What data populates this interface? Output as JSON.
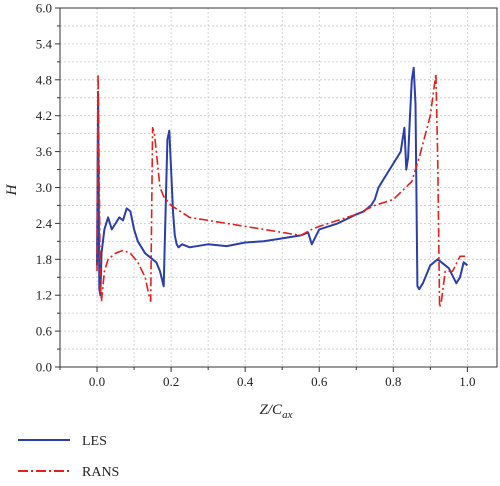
{
  "chart_data": {
    "type": "line",
    "xlabel_main": "Z",
    "xlabel_sep": "/C",
    "xlabel_sub": "ax",
    "ylabel": "H",
    "xlim": [
      -0.1,
      1.08
    ],
    "ylim": [
      0,
      6.0
    ],
    "xticks": [
      "0.0",
      "0.2",
      "0.4",
      "0.6",
      "0.8",
      "1.0"
    ],
    "yticks": [
      "0.0",
      "0.6",
      "1.2",
      "1.8",
      "2.4",
      "3.0",
      "3.6",
      "4.2",
      "4.8",
      "5.4",
      "6.0"
    ],
    "grid": true,
    "legend_position": "bottom-left",
    "series": [
      {
        "name": "LES",
        "color": "#2b3fa8",
        "dash": "solid",
        "x": [
          0.0,
          0.003,
          0.006,
          0.009,
          0.012,
          0.02,
          0.03,
          0.04,
          0.05,
          0.06,
          0.07,
          0.08,
          0.09,
          0.1,
          0.11,
          0.12,
          0.13,
          0.14,
          0.15,
          0.16,
          0.17,
          0.18,
          0.19,
          0.195,
          0.2,
          0.205,
          0.21,
          0.215,
          0.22,
          0.23,
          0.25,
          0.3,
          0.35,
          0.4,
          0.45,
          0.5,
          0.55,
          0.57,
          0.58,
          0.6,
          0.65,
          0.7,
          0.72,
          0.74,
          0.75,
          0.76,
          0.78,
          0.8,
          0.82,
          0.83,
          0.835,
          0.84,
          0.845,
          0.85,
          0.855,
          0.86,
          0.865,
          0.87,
          0.88,
          0.9,
          0.92,
          0.94,
          0.95,
          0.97,
          0.98,
          0.99,
          1.0
        ],
        "y": [
          1.7,
          4.6,
          1.3,
          1.2,
          1.9,
          2.3,
          2.5,
          2.3,
          2.4,
          2.5,
          2.45,
          2.65,
          2.6,
          2.3,
          2.1,
          2.0,
          1.9,
          1.85,
          1.8,
          1.75,
          1.6,
          1.35,
          3.8,
          3.95,
          3.3,
          2.6,
          2.2,
          2.05,
          2.0,
          2.05,
          2.0,
          2.05,
          2.02,
          2.08,
          2.1,
          2.15,
          2.2,
          2.25,
          2.05,
          2.3,
          2.4,
          2.55,
          2.6,
          2.7,
          2.8,
          3.0,
          3.2,
          3.4,
          3.6,
          4.0,
          3.3,
          3.5,
          4.2,
          4.8,
          5.0,
          4.4,
          1.35,
          1.3,
          1.4,
          1.7,
          1.8,
          1.7,
          1.65,
          1.4,
          1.5,
          1.75,
          1.7
        ]
      },
      {
        "name": "RANS",
        "color": "#e3201b",
        "dash": "dashdot",
        "x": [
          0.0,
          0.003,
          0.006,
          0.009,
          0.012,
          0.02,
          0.03,
          0.05,
          0.07,
          0.09,
          0.11,
          0.13,
          0.14,
          0.145,
          0.15,
          0.155,
          0.16,
          0.17,
          0.18,
          0.2,
          0.25,
          0.3,
          0.35,
          0.4,
          0.5,
          0.55,
          0.58,
          0.6,
          0.7,
          0.75,
          0.8,
          0.85,
          0.87,
          0.9,
          0.915,
          0.92,
          0.925,
          0.93,
          0.94,
          0.96,
          0.98,
          1.0
        ],
        "y": [
          1.6,
          4.9,
          3.0,
          1.3,
          1.1,
          1.6,
          1.8,
          1.9,
          1.95,
          1.9,
          1.75,
          1.5,
          1.2,
          1.1,
          4.0,
          3.9,
          3.6,
          3.0,
          2.85,
          2.7,
          2.5,
          2.45,
          2.4,
          2.35,
          2.25,
          2.2,
          2.3,
          2.35,
          2.55,
          2.7,
          2.8,
          3.1,
          3.5,
          4.2,
          4.9,
          3.5,
          1.0,
          1.1,
          1.6,
          1.6,
          1.85,
          1.85
        ]
      }
    ]
  }
}
